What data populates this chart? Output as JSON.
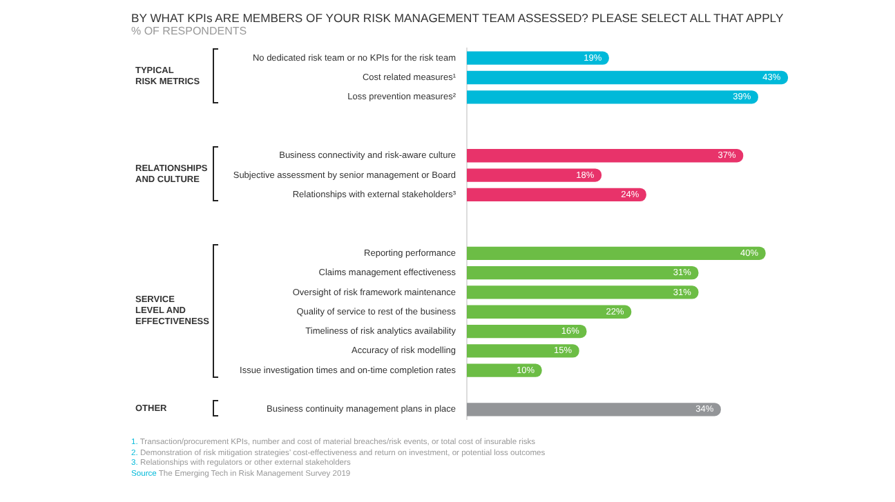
{
  "chart_data": {
    "type": "bar",
    "orientation": "horizontal",
    "title": "BY WHAT KPIs ARE MEMBERS OF YOUR RISK MANAGEMENT TEAM ASSESSED? PLEASE SELECT ALL THAT APPLY",
    "subtitle": "% OF RESPONDENTS",
    "categories": [
      "No dedicated risk team or no KPIs for the risk team",
      "Cost related measures¹",
      "Loss prevention measures²",
      null,
      null,
      "Business connectivity and risk-aware culture",
      "Subjective assessment by senior management or Board",
      "Relationships with external stakeholders³",
      null,
      null,
      "Reporting performance",
      "Claims management effectiveness",
      "Oversight of risk framework maintenance",
      "Quality of service to rest of the business",
      "Timeliness of risk analytics availability",
      "Accuracy of risk modelling",
      "Issue investigation times and on-time completion rates",
      null,
      "Business continuity management plans in place"
    ],
    "values": [
      19,
      43,
      39,
      null,
      null,
      37,
      18,
      24,
      null,
      null,
      40,
      31,
      31,
      22,
      16,
      15,
      10,
      null,
      34
    ],
    "value_labels": [
      "19%",
      "43%",
      "39%",
      null,
      null,
      "37%",
      "18%",
      "24%",
      null,
      null,
      "40%",
      "31%",
      "31%",
      "22%",
      "16%",
      "15%",
      "10%",
      null,
      "34%"
    ],
    "colors": [
      "#00b9d9",
      "#00b9d9",
      "#00b9d9",
      null,
      null,
      "#e8336a",
      "#e8336a",
      "#e8336a",
      null,
      null,
      "#6cbd45",
      "#6cbd45",
      "#6cbd45",
      "#6cbd45",
      "#6cbd45",
      "#6cbd45",
      "#6cbd45",
      null,
      "#939598"
    ],
    "annotations": [
      "TYPICAL\nRISK METRICS",
      "RELATIONSHIPS\nAND CULTURE",
      "SERVICE\nLEVEL AND\nEFFECTIVENESS",
      "OTHER",
      "1. Transaction/procurement KPIs, number and cost of material breaches/risk events, or total cost of insurable risks",
      "2. Demonstration of risk mitigation strategies’ cost-effectiveness and return on investment, or potential loss outcomes",
      "3. Relationships with regulators or other external stakeholders",
      "Source The Emerging Tech in Risk Management Survey 2019"
    ]
  }
}
